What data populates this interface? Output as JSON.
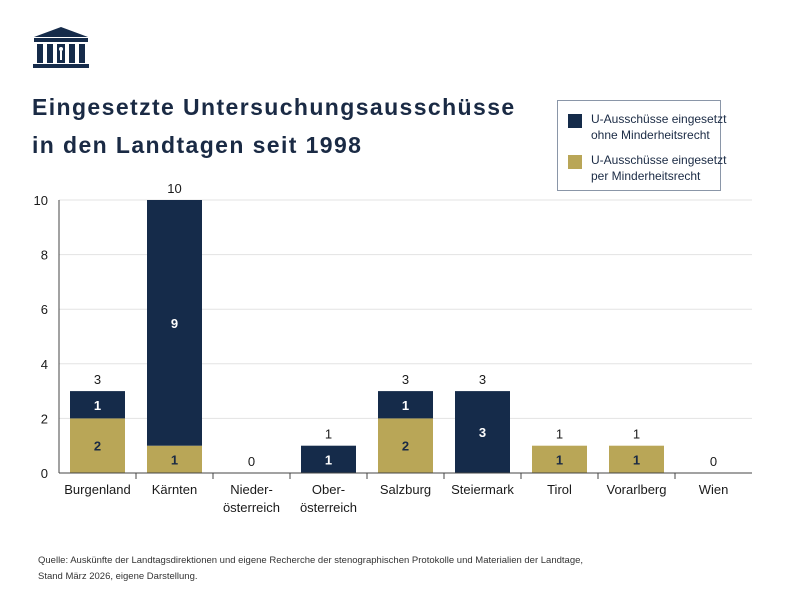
{
  "title_lines": [
    "Eingesetzte Untersuchungsausschüsse",
    "in den Landtagen seit 1998"
  ],
  "legend": [
    {
      "label_lines": [
        "U-Ausschüsse eingesetzt",
        "ohne Minderheitsrecht"
      ],
      "color": "#152b4a"
    },
    {
      "label_lines": [
        "U-Ausschüsse eingesetzt",
        "per Minderheitsrecht"
      ],
      "color": "#b9a657"
    }
  ],
  "source_lines": [
    "Quelle: Auskünfte der Landtagsdirektionen und eigene Recherche der stenographischen Protokolle und Materialien der Landtage,",
    "Stand März 2026, eigene Darstellung."
  ],
  "chart_data": {
    "type": "bar",
    "stacked": true,
    "categories": [
      [
        "Burgenland"
      ],
      [
        "Kärnten"
      ],
      [
        "Nieder-",
        "österreich"
      ],
      [
        "Ober-",
        "österreich"
      ],
      [
        "Salzburg"
      ],
      [
        "Steiermark"
      ],
      [
        "Tirol"
      ],
      [
        "Vorarlberg"
      ],
      [
        "Wien"
      ]
    ],
    "series": [
      {
        "name": "U-Ausschüsse eingesetzt per Minderheitsrecht",
        "color": "#b9a657",
        "values": [
          2,
          1,
          0,
          0,
          2,
          0,
          1,
          1,
          0
        ]
      },
      {
        "name": "U-Ausschüsse eingesetzt ohne Minderheitsrecht",
        "color": "#152b4a",
        "values": [
          1,
          9,
          0,
          1,
          1,
          3,
          0,
          0,
          0
        ]
      }
    ],
    "totals": [
      3,
      10,
      0,
      1,
      3,
      3,
      1,
      1,
      0
    ],
    "y_ticks": [
      0,
      2,
      4,
      6,
      8,
      10
    ],
    "ylim": [
      0,
      10
    ],
    "grid": true
  }
}
